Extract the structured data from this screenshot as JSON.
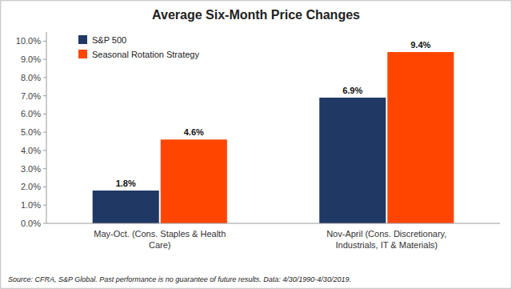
{
  "chart_data": {
    "type": "bar",
    "title": "Average Six-Month Price Changes",
    "categories": [
      "May-Oct. (Cons. Staples & Health\nCare)",
      "Nov-April (Cons. Discretionary,\nIndustrials, IT & Materials)"
    ],
    "series": [
      {
        "name": "S&P 500",
        "color": "#1F3864",
        "values": [
          1.8,
          6.9
        ],
        "value_labels": [
          "1.8%",
          "6.9%"
        ]
      },
      {
        "name": "Seasonal Rotation Strategy",
        "color": "#FF4500",
        "values": [
          4.6,
          9.4
        ],
        "value_labels": [
          "4.6%",
          "9.4%"
        ]
      }
    ],
    "ylim": [
      0,
      10.5
    ],
    "yticks": [
      {
        "value": 0.0,
        "label": "0.0%"
      },
      {
        "value": 1.0,
        "label": "1.0%"
      },
      {
        "value": 2.0,
        "label": "2.0%"
      },
      {
        "value": 3.0,
        "label": "3.0%"
      },
      {
        "value": 4.0,
        "label": "4.0%"
      },
      {
        "value": 5.0,
        "label": "5.0%"
      },
      {
        "value": 6.0,
        "label": "6.0%"
      },
      {
        "value": 7.0,
        "label": "7.0%"
      },
      {
        "value": 8.0,
        "label": "8.0%"
      },
      {
        "value": 9.0,
        "label": "9.0%"
      },
      {
        "value": 10.0,
        "label": "10.0%"
      }
    ],
    "grid": false,
    "legend": "upper left",
    "data_labels": true,
    "annotations": [
      "Source: CFRA, S&P Global.  Past performance is no guarantee  of future results. Data: 4/30/1990-4/30/2019."
    ]
  }
}
